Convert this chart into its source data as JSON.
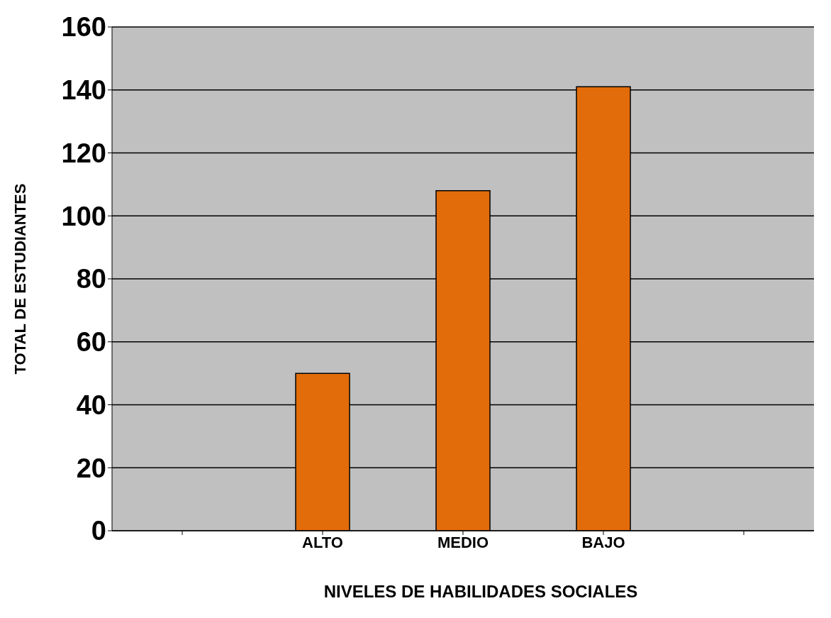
{
  "chart_data": {
    "type": "bar",
    "xlabel": "NIVELES DE HABILIDADES SOCIALES",
    "ylabel": "TOTAL   DE   ESTUDIANTES",
    "categories": [
      null,
      "ALTO",
      "MEDIO",
      "BAJO",
      null
    ],
    "values": [
      null,
      50,
      108,
      141,
      null
    ],
    "color": "#e36c0a",
    "ylim": [
      0,
      160
    ],
    "yticks": [
      0,
      20,
      40,
      60,
      80,
      100,
      120,
      140,
      160
    ],
    "grid": "y"
  }
}
